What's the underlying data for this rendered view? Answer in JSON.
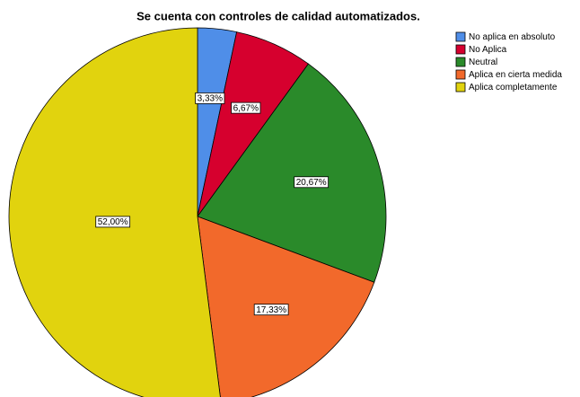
{
  "chart_data": {
    "type": "pie",
    "title": "Se cuenta con controles de calidad automatizados.",
    "categories": [
      "No aplica en absoluto",
      "No Aplica",
      "Neutral",
      "Aplica en cierta medida",
      "Aplica completamente"
    ],
    "values": [
      3.33,
      6.67,
      20.67,
      17.33,
      52.0
    ],
    "value_labels": [
      "3,33%",
      "6,67%",
      "20,67%",
      "17,33%",
      "52,00%"
    ],
    "colors": [
      "#4f8ee8",
      "#d6002e",
      "#2a8a2a",
      "#f2692b",
      "#e1d30e"
    ],
    "legend": "top-right"
  }
}
